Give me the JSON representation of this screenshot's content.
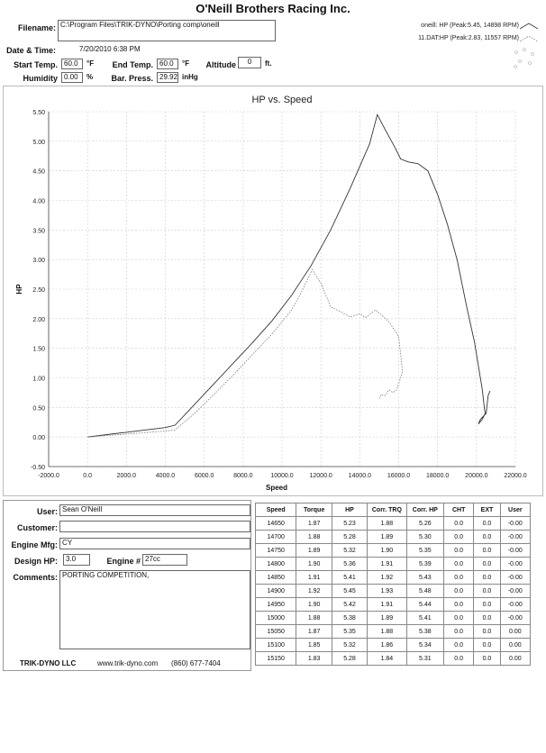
{
  "header": {
    "company": "O'Neill Brothers Racing Inc.",
    "filename_label": "Filename:",
    "filename_value": "C:\\Program Files\\TRIK-DYNO\\Porting comp\\oneill",
    "datetime_label": "Date & Time:",
    "datetime_value": "7/20/2010 6:38 PM",
    "start_temp_label": "Start Temp.",
    "start_temp_value": "60.0",
    "start_temp_unit": "°F",
    "end_temp_label": "End Temp.",
    "end_temp_value": "60.0",
    "end_temp_unit": "°F",
    "altitude_label": "Altitude",
    "altitude_value": "0",
    "altitude_unit": "ft.",
    "humidity_label": "Humidity",
    "humidity_value": "0.00",
    "humidity_unit": "%",
    "baro_label": "Bar. Press.",
    "baro_value": "29.92",
    "baro_unit": "inHg"
  },
  "legend": {
    "items": [
      {
        "label": "oneill: HP (Peak:5.45, 14898 RPM)"
      },
      {
        "label": "11.DAT:HP (Peak:2.83, 11557 RPM)"
      }
    ]
  },
  "chart_data": {
    "type": "line",
    "title": "HP vs. Speed",
    "xlabel": "Speed",
    "ylabel": "HP",
    "xlim": [
      -2000,
      22000
    ],
    "ylim": [
      -0.5,
      5.5
    ],
    "x_ticks": [
      "-2000.0",
      "0.0",
      "2000.0",
      "4000.0",
      "6000.0",
      "8000.0",
      "10000.0",
      "12000.0",
      "14000.0",
      "16000.0",
      "18000.0",
      "20000.0",
      "22000.0"
    ],
    "y_ticks": [
      "5.50",
      "5.00",
      "4.50",
      "4.00",
      "3.50",
      "3.00",
      "2.50",
      "2.00",
      "1.50",
      "1.00",
      "0.50",
      "0.00",
      "-0.50"
    ],
    "grid": true,
    "series": [
      {
        "name": "oneill: HP",
        "style": "solid",
        "x": [
          0,
          1000,
          2000,
          3000,
          4000,
          4500,
          5500,
          6500,
          7500,
          8500,
          9500,
          10500,
          11500,
          12500,
          13500,
          14500,
          14900,
          15300,
          15800,
          16100,
          16500,
          17000,
          17500,
          18000,
          18500,
          19000,
          19500,
          19900,
          20100,
          20300,
          20400,
          20450,
          20300,
          20100,
          20200,
          20500,
          20600,
          20700
        ],
        "y": [
          0.0,
          0.04,
          0.08,
          0.12,
          0.16,
          0.2,
          0.55,
          0.9,
          1.25,
          1.6,
          1.97,
          2.4,
          2.9,
          3.5,
          4.2,
          4.95,
          5.45,
          5.2,
          4.9,
          4.7,
          4.65,
          4.62,
          4.5,
          4.1,
          3.6,
          3.0,
          2.2,
          1.6,
          1.2,
          0.8,
          0.5,
          0.4,
          0.3,
          0.22,
          0.3,
          0.4,
          0.7,
          0.78
        ]
      },
      {
        "name": "11.DAT:HP",
        "style": "dotted",
        "x": [
          0,
          2000,
          4000,
          4500,
          5500,
          6500,
          7500,
          8500,
          9500,
          10500,
          11000,
          11557,
          12000,
          12500,
          13000,
          13500,
          14000,
          14300,
          14800,
          15500,
          16000,
          16200,
          15900,
          15700,
          15500,
          15300,
          15100,
          15000
        ],
        "y": [
          0.0,
          0.05,
          0.1,
          0.12,
          0.4,
          0.72,
          1.05,
          1.4,
          1.75,
          2.15,
          2.45,
          2.83,
          2.6,
          2.2,
          2.12,
          2.03,
          2.08,
          2.02,
          2.15,
          1.95,
          1.7,
          1.1,
          0.8,
          0.75,
          0.8,
          0.7,
          0.72,
          0.65
        ]
      }
    ]
  },
  "info": {
    "user_label": "User:",
    "user_value": "Sean O'Neill",
    "customer_label": "Customer:",
    "customer_value": "",
    "engine_mfg_label": "Engine Mfg:",
    "engine_mfg_value": "CY",
    "design_hp_label": "Design HP:",
    "design_hp_value": "3.0",
    "engine_num_label": "Engine #",
    "engine_num_value": "27cc",
    "comments_label": "Comments:",
    "comments_value": "PORTING COMPETITION,"
  },
  "table": {
    "headers": [
      "Speed",
      "Torque",
      "HP",
      "Corr. TRQ",
      "Corr. HP",
      "CHT",
      "EXT",
      "User"
    ],
    "rows": [
      [
        "14650",
        "1.87",
        "5.23",
        "1.88",
        "5.26",
        "0.0",
        "0.0",
        "-0.00"
      ],
      [
        "14700",
        "1.88",
        "5.28",
        "1.89",
        "5.30",
        "0.0",
        "0.0",
        "-0.00"
      ],
      [
        "14750",
        "1.89",
        "5.32",
        "1.90",
        "5.35",
        "0.0",
        "0.0",
        "-0.00"
      ],
      [
        "14800",
        "1.90",
        "5.36",
        "1.91",
        "5.39",
        "0.0",
        "0.0",
        "-0.00"
      ],
      [
        "14850",
        "1.91",
        "5.41",
        "1.92",
        "5.43",
        "0.0",
        "0.0",
        "-0.00"
      ],
      [
        "14900",
        "1.92",
        "5.45",
        "1.93",
        "5.48",
        "0.0",
        "0.0",
        "-0.00"
      ],
      [
        "14950",
        "1.90",
        "5.42",
        "1.91",
        "5.44",
        "0.0",
        "0.0",
        "-0.00"
      ],
      [
        "15000",
        "1.88",
        "5.38",
        "1.89",
        "5.41",
        "0.0",
        "0.0",
        "-0.00"
      ],
      [
        "15050",
        "1.87",
        "5.35",
        "1.88",
        "5.38",
        "0.0",
        "0.0",
        "0.00"
      ],
      [
        "15100",
        "1.85",
        "5.32",
        "1.86",
        "5.34",
        "0.0",
        "0.0",
        "0.00"
      ],
      [
        "15150",
        "1.83",
        "5.28",
        "1.84",
        "5.31",
        "0.0",
        "0.0",
        "0.00"
      ]
    ]
  },
  "footer": {
    "brand": "TRIK-DYNO LLC",
    "website": "www.trik-dyno.com",
    "phone": "(860) 677-7404"
  }
}
